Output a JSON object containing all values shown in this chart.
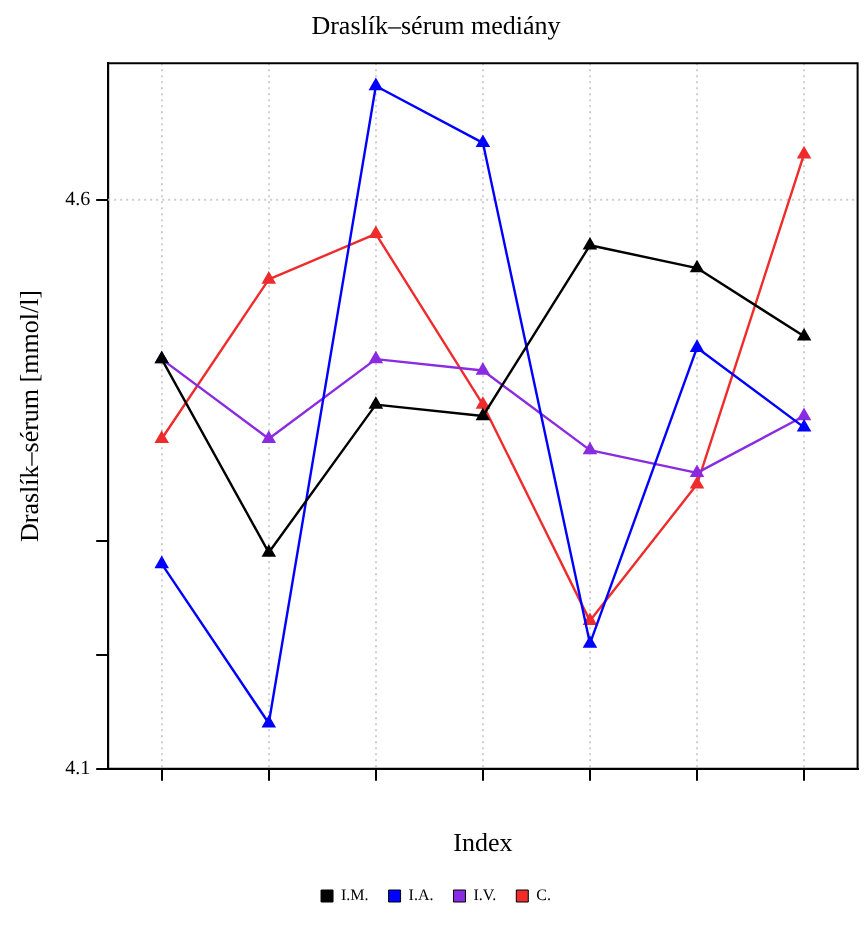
{
  "chart_data": {
    "type": "line",
    "title": "Draslík–sérum mediány",
    "xlabel": "Index",
    "ylabel": "Draslík–sérum [mmol/l]",
    "categories": [
      null,
      null,
      null,
      null,
      null,
      null,
      null
    ],
    "series": [
      {
        "name": "I.M.",
        "color": "#000000",
        "values": [
          4.46,
          4.29,
          4.42,
          4.41,
          4.56,
          4.54,
          4.48
        ]
      },
      {
        "name": "I.A.",
        "color": "#0000ff",
        "values": [
          4.28,
          4.14,
          4.7,
          4.65,
          4.21,
          4.47,
          4.4
        ]
      },
      {
        "name": "I.V.",
        "color": "#8a2be2",
        "values": [
          4.46,
          4.39,
          4.46,
          4.45,
          4.38,
          4.36,
          4.41
        ]
      },
      {
        "name": "C.",
        "color": "#ee2c2c",
        "values": [
          4.39,
          4.53,
          4.57,
          4.42,
          4.23,
          4.35,
          4.64
        ]
      }
    ],
    "ylim": [
      4.1,
      4.72
    ],
    "yticks": [
      4.1,
      {
        "value": 4.2,
        "label": null
      },
      {
        "value": 4.3,
        "label": null
      },
      4.6
    ],
    "ref_lines": [
      {
        "axis": "y",
        "value": 4.6,
        "color": "#cccccc",
        "line_style": "dotted"
      }
    ],
    "tick_labels": "y",
    "grid": "x",
    "legend": "bottom",
    "marker": "triangle",
    "line_style": "solid"
  }
}
